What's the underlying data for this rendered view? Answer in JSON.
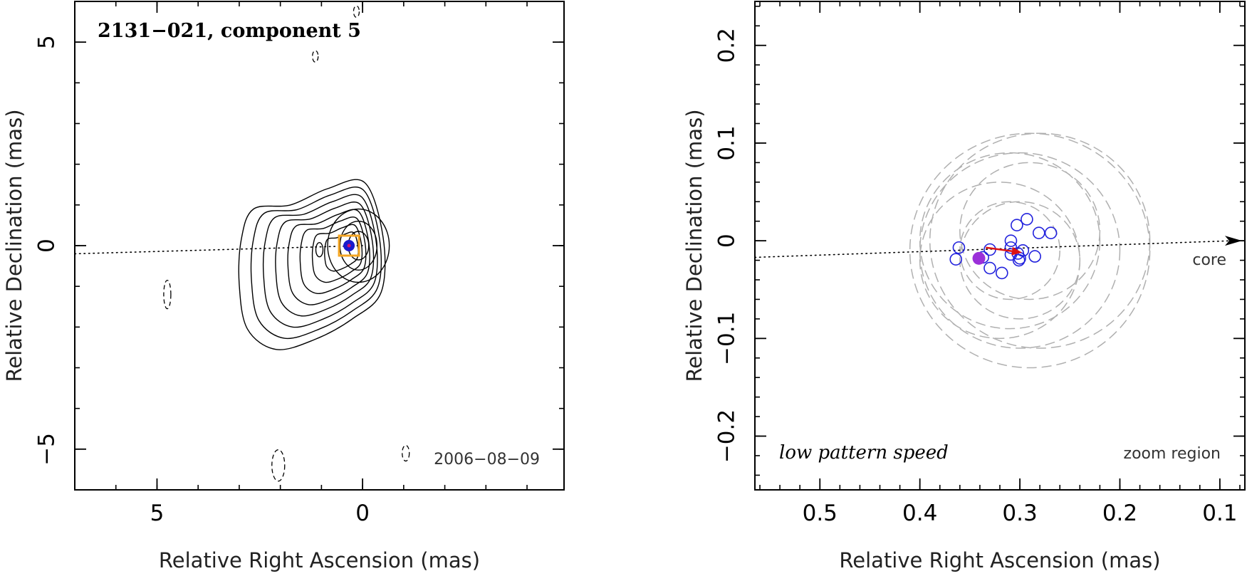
{
  "chart_data": [
    {
      "type": "scatter",
      "title": "2131−021, component 5",
      "date_label": "2006−08−09",
      "xlabel": "Relative Right Ascension (mas)",
      "ylabel": "Relative Declination (mas)",
      "xlim": [
        7.0,
        -4.9
      ],
      "ylim": [
        -6.0,
        6.0
      ],
      "x_major_ticks": [
        {
          "value": 5,
          "label": "5"
        },
        {
          "value": 0,
          "label": "0"
        }
      ],
      "y_major_ticks": [
        {
          "value": 5,
          "label": "5"
        },
        {
          "value": 0,
          "label": "0"
        },
        {
          "value": -5,
          "label": "−5"
        }
      ],
      "x_minor_step": 1,
      "y_minor_step": 1,
      "component_position": {
        "x": 0.33,
        "y": 0.0
      },
      "trajectory_line": [
        [
          7.0,
          -0.2
        ],
        [
          0.0,
          0.0
        ]
      ],
      "contour_levels": 10,
      "colors": {
        "component": "#1a1acc",
        "component_marker": "#d01070",
        "box": "#f5a623",
        "contour": "#000000"
      }
    },
    {
      "type": "scatter",
      "region_label": "zoom region",
      "style_label": "low pattern speed",
      "core_label": "core",
      "xlabel": "Relative Right Ascension (mas)",
      "ylabel": "Relative Declination (mas)",
      "xlim": [
        0.565,
        0.075
      ],
      "ylim": [
        -0.255,
        0.245
      ],
      "x_major_ticks": [
        {
          "value": 0.5,
          "label": "0.5"
        },
        {
          "value": 0.4,
          "label": "0.4"
        },
        {
          "value": 0.3,
          "label": "0.3"
        },
        {
          "value": 0.2,
          "label": "0.2"
        },
        {
          "value": 0.1,
          "label": "0.1"
        }
      ],
      "y_major_ticks": [
        {
          "value": 0.2,
          "label": "0.2"
        },
        {
          "value": 0.1,
          "label": "0.1"
        },
        {
          "value": 0,
          "label": "0"
        },
        {
          "value": -0.1,
          "label": "−0.1"
        },
        {
          "value": -0.2,
          "label": "−0.2"
        }
      ],
      "x_minor_step": 0.02,
      "y_minor_step": 0.02,
      "trajectory_line": [
        [
          0.565,
          -0.017
        ],
        [
          0.075,
          0.0
        ]
      ],
      "epoch_positions": [
        {
          "x": 0.361,
          "y": -0.007
        },
        {
          "x": 0.364,
          "y": -0.019
        },
        {
          "x": 0.337,
          "y": -0.017
        },
        {
          "x": 0.33,
          "y": -0.009
        },
        {
          "x": 0.33,
          "y": -0.028
        },
        {
          "x": 0.318,
          "y": -0.033
        },
        {
          "x": 0.309,
          "y": 0.0
        },
        {
          "x": 0.309,
          "y": -0.007
        },
        {
          "x": 0.309,
          "y": -0.014
        },
        {
          "x": 0.302,
          "y": -0.013
        },
        {
          "x": 0.3,
          "y": -0.018
        },
        {
          "x": 0.301,
          "y": -0.02
        },
        {
          "x": 0.297,
          "y": -0.01
        },
        {
          "x": 0.303,
          "y": 0.016
        },
        {
          "x": 0.293,
          "y": 0.022
        },
        {
          "x": 0.281,
          "y": 0.008
        },
        {
          "x": 0.269,
          "y": 0.008
        },
        {
          "x": 0.285,
          "y": -0.016
        }
      ],
      "reference_position": {
        "x": 0.341,
        "y": -0.018
      },
      "error_circles": [
        {
          "cx": 0.3,
          "cy": -0.01,
          "r": 0.1
        },
        {
          "cx": 0.29,
          "cy": -0.01,
          "r": 0.12
        },
        {
          "cx": 0.31,
          "cy": 0.0,
          "r": 0.09
        },
        {
          "cx": 0.28,
          "cy": 0.0,
          "r": 0.11
        },
        {
          "cx": 0.32,
          "cy": -0.02,
          "r": 0.08
        },
        {
          "cx": 0.3,
          "cy": -0.02,
          "r": 0.06
        },
        {
          "cx": 0.29,
          "cy": 0.01,
          "r": 0.07
        },
        {
          "cx": 0.31,
          "cy": -0.01,
          "r": 0.05
        }
      ],
      "velocity_arrow": {
        "from": [
          0.334,
          -0.007
        ],
        "to": [
          0.298,
          -0.012
        ]
      },
      "colors": {
        "epochs": "#2222dd",
        "reference": "#9b30d9",
        "arrow": "#dd1111",
        "circles": "#b0b0b0"
      }
    }
  ]
}
